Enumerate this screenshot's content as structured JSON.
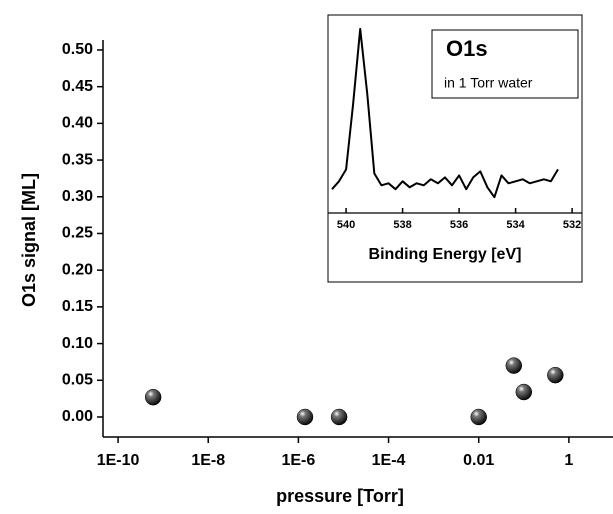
{
  "chart_data": [
    {
      "type": "scatter",
      "x_label": "pressure [Torr]",
      "y_label": "O1s signal [ML]",
      "xscale": "log",
      "xlim": [
        5e-11,
        8
      ],
      "ylim": [
        -0.027,
        0.505
      ],
      "xticks": [
        {
          "value": 1e-10,
          "label": "1E-10"
        },
        {
          "value": 1e-08,
          "label": "1E-8"
        },
        {
          "value": 1e-06,
          "label": "1E-6"
        },
        {
          "value": 0.0001,
          "label": "1E-4"
        },
        0.01,
        1
      ],
      "yticks": [
        {
          "value": 0,
          "label": "0.00"
        },
        0.05,
        {
          "value": 0.1,
          "label": "0.10"
        },
        0.15,
        {
          "value": 0.2,
          "label": "0.20"
        },
        0.25,
        {
          "value": 0.3,
          "label": "0.30"
        },
        0.35,
        {
          "value": 0.4,
          "label": "0.40"
        },
        0.45,
        {
          "value": 0.5,
          "label": "0.50"
        }
      ],
      "color": "#000000",
      "x": [
        6e-10,
        1.4e-06,
        8e-06,
        0.01,
        0.06,
        0.1,
        0.5
      ],
      "values": [
        0.027,
        0,
        0,
        0,
        0.07,
        0.034,
        0.057
      ]
    },
    {
      "type": "line",
      "title": "O1s",
      "subtitle": "in 1 Torr water",
      "x_label": "Binding Energy [eV]",
      "xlim": [
        540.64,
        531.65
      ],
      "ylim": [
        0,
        100
      ],
      "xticks": [
        540,
        538,
        536,
        534,
        532
      ],
      "color": "#000000",
      "x": [
        540.5,
        540.25,
        540.0,
        539.75,
        539.5,
        539.25,
        539.0,
        538.75,
        538.5,
        538.25,
        538.0,
        537.75,
        537.5,
        537.25,
        537.0,
        536.75,
        536.5,
        536.25,
        536.0,
        535.75,
        535.5,
        535.25,
        535.0,
        534.75,
        534.5,
        534.25,
        534.0,
        533.75,
        533.5,
        533.25,
        533.0,
        532.75,
        532.5
      ],
      "values": [
        12,
        16,
        22,
        55,
        93,
        60,
        20,
        14,
        15,
        12,
        16,
        13,
        15,
        14,
        17,
        15,
        18,
        14,
        19,
        12,
        18,
        21,
        13,
        8,
        19,
        15,
        16,
        17,
        15,
        16,
        17,
        16,
        22
      ]
    }
  ]
}
